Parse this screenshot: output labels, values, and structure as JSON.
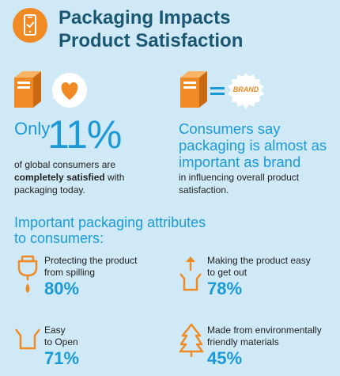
{
  "header": {
    "title_line1": "Packaging Impacts",
    "title_line2": "Product Satisfaction",
    "icon": "phone-package-icon"
  },
  "stat_left": {
    "only": "Only",
    "percent": "11%",
    "line1": "of global consumers are",
    "bold": "completely satisfied",
    "line2_rest": " with",
    "line3": "packaging today."
  },
  "stat_right": {
    "headline_lines": [
      "Consumers say",
      "packaging is almost as",
      "important as brand"
    ],
    "line1": "in influencing overall product",
    "line2": "satisfaction.",
    "badge": "BRAND"
  },
  "attributes": {
    "heading_line1": "Important packaging attributes",
    "heading_line2": "to consumers:",
    "items": [
      {
        "label_lines": [
          "Protecting the product",
          "from spilling"
        ],
        "percent": "80%",
        "icon": "spill-drop-icon"
      },
      {
        "label_lines": [
          "Making the product easy",
          "to get out"
        ],
        "percent": "78%",
        "icon": "box-arrow-up-icon"
      },
      {
        "label_lines": [
          "Easy",
          "to Open"
        ],
        "percent": "71%",
        "icon": "open-box-icon"
      },
      {
        "label_lines": [
          "Made from environmentally",
          "friendly materials"
        ],
        "percent": "45%",
        "icon": "tree-icon"
      }
    ]
  },
  "colors": {
    "background": "#cfe9f7",
    "orange": "#f08a24",
    "blue": "#1b9ad7",
    "title": "#1c5873"
  }
}
